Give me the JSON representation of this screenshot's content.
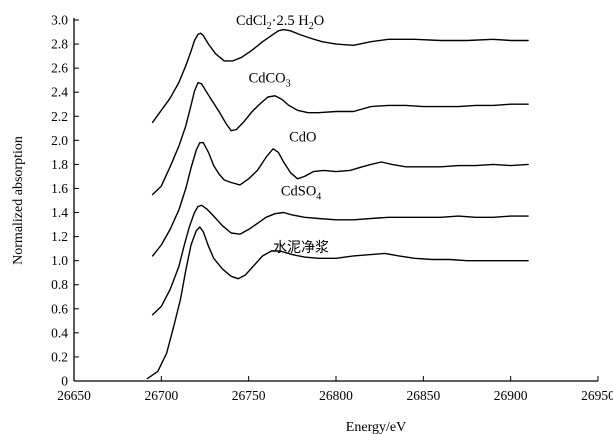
{
  "chart_data": {
    "type": "line",
    "xlabel": "Energy/eV",
    "ylabel": "Normalized absorption",
    "xlim": [
      26650,
      26950
    ],
    "ylim": [
      0,
      3.0
    ],
    "xticks": [
      26650,
      26700,
      26750,
      26800,
      26850,
      26900,
      26950
    ],
    "yticks": [
      0,
      0.2,
      0.4,
      0.6,
      0.8,
      1.0,
      1.2,
      1.4,
      1.6,
      1.8,
      2.0,
      2.2,
      2.4,
      2.6,
      2.8,
      3.0
    ],
    "grid": false,
    "legend": "none",
    "series": [
      {
        "name": "CdCl2·2.5H2O",
        "label_parts": [
          "CdCl",
          "2",
          "·2.5 H",
          "2",
          "O"
        ],
        "x": [
          26695,
          26705,
          26710,
          26714,
          26717,
          26719,
          26721,
          26722.5,
          26724,
          26727,
          26731,
          26736,
          26741,
          26746,
          26752,
          26758,
          26763,
          26767,
          26770,
          26774,
          26779,
          26785,
          26792,
          26800,
          26810,
          26820,
          26830,
          26845,
          26860,
          26875,
          26890,
          26900,
          26910
        ],
        "y": [
          2.15,
          2.35,
          2.48,
          2.62,
          2.74,
          2.83,
          2.88,
          2.89,
          2.87,
          2.8,
          2.72,
          2.66,
          2.66,
          2.69,
          2.75,
          2.82,
          2.87,
          2.91,
          2.92,
          2.91,
          2.88,
          2.85,
          2.82,
          2.8,
          2.79,
          2.82,
          2.84,
          2.84,
          2.83,
          2.83,
          2.84,
          2.83,
          2.83
        ]
      },
      {
        "name": "CdCO3",
        "label_parts": [
          "CdCO",
          "3"
        ],
        "x": [
          26695,
          26700,
          26705,
          26710,
          26714,
          26717,
          26719,
          26721,
          26723,
          26726,
          26729,
          26733,
          26737,
          26740,
          26743,
          26747,
          26752,
          26757,
          26761,
          26765,
          26769,
          26773,
          26778,
          26784,
          26790,
          26800,
          26810,
          26820,
          26830,
          26840,
          26850,
          26860,
          26870,
          26880,
          26890,
          26900,
          26910
        ],
        "y": [
          1.55,
          1.62,
          1.78,
          1.95,
          2.12,
          2.29,
          2.41,
          2.48,
          2.47,
          2.4,
          2.33,
          2.24,
          2.14,
          2.08,
          2.09,
          2.15,
          2.24,
          2.31,
          2.36,
          2.37,
          2.34,
          2.29,
          2.25,
          2.23,
          2.23,
          2.24,
          2.24,
          2.28,
          2.29,
          2.29,
          2.28,
          2.28,
          2.28,
          2.29,
          2.29,
          2.3,
          2.3
        ]
      },
      {
        "name": "CdO",
        "label_parts": [
          "CdO"
        ],
        "x": [
          26695,
          26700,
          26705,
          26710,
          26714,
          26717,
          26720,
          26722,
          26724,
          26727,
          26730,
          26733,
          26736,
          26740,
          26745,
          26750,
          26755,
          26760,
          26764,
          26767,
          26770,
          26774,
          26778,
          26782,
          26787,
          26793,
          26800,
          26808,
          26815,
          26820,
          26826,
          26832,
          26840,
          26850,
          26860,
          26870,
          26880,
          26890,
          26900,
          26910
        ],
        "y": [
          1.04,
          1.13,
          1.26,
          1.42,
          1.6,
          1.77,
          1.92,
          1.98,
          1.98,
          1.9,
          1.79,
          1.72,
          1.67,
          1.65,
          1.63,
          1.68,
          1.75,
          1.86,
          1.93,
          1.9,
          1.82,
          1.73,
          1.68,
          1.7,
          1.74,
          1.75,
          1.74,
          1.75,
          1.78,
          1.8,
          1.82,
          1.8,
          1.78,
          1.78,
          1.78,
          1.79,
          1.79,
          1.8,
          1.79,
          1.8
        ]
      },
      {
        "name": "CdSO4",
        "label_parts": [
          "CdSO",
          "4"
        ],
        "x": [
          26695,
          26700,
          26705,
          26710,
          26713,
          26716,
          26719,
          26721,
          26723,
          26726,
          26730,
          26735,
          26740,
          26745,
          26750,
          26755,
          26760,
          26765,
          26770,
          26775,
          26782,
          26790,
          26800,
          26810,
          26820,
          26830,
          26840,
          26850,
          26860,
          26870,
          26880,
          26890,
          26900,
          26910
        ],
        "y": [
          0.55,
          0.62,
          0.76,
          0.95,
          1.12,
          1.28,
          1.4,
          1.45,
          1.46,
          1.43,
          1.37,
          1.29,
          1.23,
          1.22,
          1.26,
          1.31,
          1.36,
          1.39,
          1.4,
          1.38,
          1.36,
          1.35,
          1.34,
          1.34,
          1.35,
          1.36,
          1.36,
          1.36,
          1.36,
          1.37,
          1.36,
          1.36,
          1.37,
          1.37
        ]
      },
      {
        "name": "水泥净浆",
        "label_parts": [
          "水泥净浆"
        ],
        "x": [
          26692,
          26698,
          26703,
          26707,
          26711,
          26714,
          26717,
          26720,
          26722,
          26724,
          26727,
          26730,
          26735,
          26740,
          26744,
          26748,
          26753,
          26758,
          26763,
          26768,
          26775,
          26782,
          26790,
          26800,
          26810,
          26820,
          26828,
          26836,
          26845,
          26855,
          26865,
          26875,
          26885,
          26895,
          26905,
          26910
        ],
        "y": [
          0.02,
          0.08,
          0.23,
          0.45,
          0.68,
          0.92,
          1.13,
          1.25,
          1.28,
          1.24,
          1.12,
          1.02,
          0.93,
          0.87,
          0.85,
          0.88,
          0.96,
          1.04,
          1.08,
          1.08,
          1.05,
          1.03,
          1.02,
          1.02,
          1.04,
          1.05,
          1.06,
          1.04,
          1.02,
          1.01,
          1.01,
          1.0,
          1.0,
          1.0,
          1.0,
          1.0
        ]
      }
    ]
  }
}
